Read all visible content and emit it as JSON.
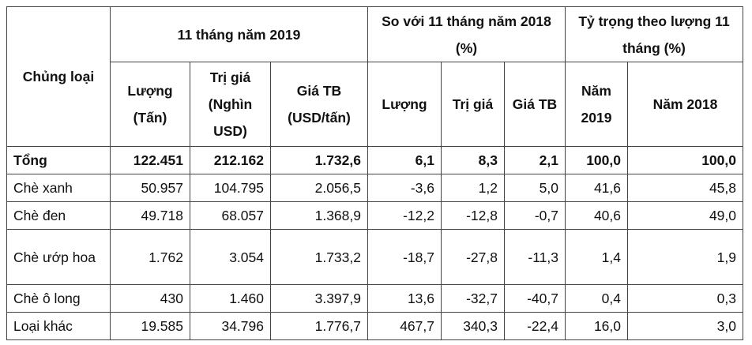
{
  "header": {
    "type": "Chủng loại",
    "group1": "11 tháng năm 2019",
    "group2": "So với 11 tháng năm 2018 (%)",
    "group3": "Tỷ trọng theo lượng 11 tháng (%)",
    "cols": [
      "Lượng (Tấn)",
      "Trị giá (Nghìn USD)",
      "Giá TB (USD/tấn)",
      "Lượng",
      "Trị giá",
      "Giá TB",
      "Năm 2019",
      "Năm 2018"
    ]
  },
  "rows": [
    {
      "name": "Tổng",
      "values": [
        "122.451",
        "212.162",
        "1.732,6",
        "6,1",
        "8,3",
        "2,1",
        "100,0",
        "100,0"
      ]
    },
    {
      "name": "Chè xanh",
      "values": [
        "50.957",
        "104.795",
        "2.056,5",
        "-3,6",
        "1,2",
        "5,0",
        "41,6",
        "45,8"
      ]
    },
    {
      "name": "Chè đen",
      "values": [
        "49.718",
        "68.057",
        "1.368,9",
        "-12,2",
        "-12,8",
        "-0,7",
        "40,6",
        "49,0"
      ]
    },
    {
      "name": "Chè ướp hoa",
      "values": [
        "1.762",
        "3.054",
        "1.733,2",
        "-18,7",
        "-27,8",
        "-11,3",
        "1,4",
        "1,9"
      ]
    },
    {
      "name": "Chè ô long",
      "values": [
        "430",
        "1.460",
        "3.397,9",
        "13,6",
        "-32,7",
        "-40,7",
        "0,4",
        "0,3"
      ]
    },
    {
      "name": "Loại khác",
      "values": [
        "19.585",
        "34.796",
        "1.776,7",
        "467,7",
        "340,3",
        "-22,4",
        "16,0",
        "3,0"
      ]
    }
  ]
}
